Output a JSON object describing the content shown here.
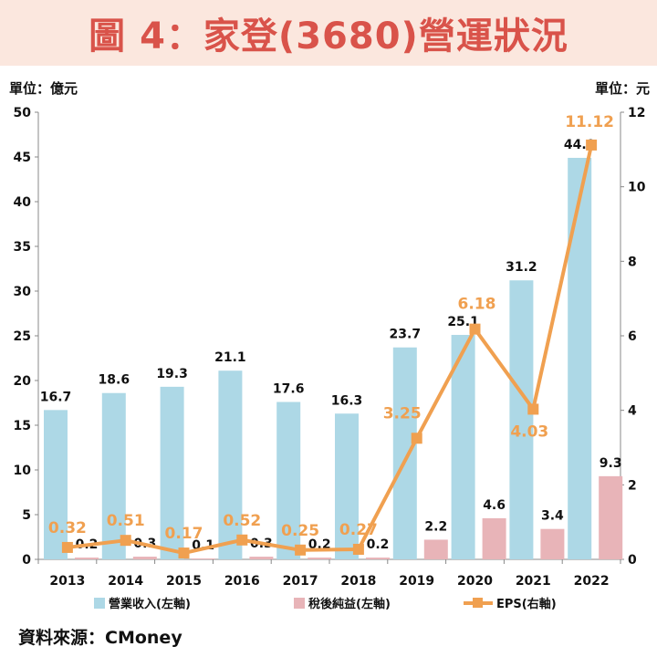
{
  "header": {
    "title": "圖 4：家登(3680)營運狀況"
  },
  "units": {
    "left": "單位：億元",
    "right": "單位：元"
  },
  "source": "資料來源：CMoney",
  "colors": {
    "revenue": "#add8e6",
    "net_income": "#e8b4b8",
    "eps": "#f0a050",
    "eps_label": "#f0a050"
  },
  "chart_data": {
    "type": "bar",
    "categories": [
      "2013",
      "2014",
      "2015",
      "2016",
      "2017",
      "2018",
      "2019",
      "2020",
      "2021",
      "2022"
    ],
    "series": [
      {
        "name": "營業收入(左軸)",
        "axis": "left",
        "type": "bar",
        "values": [
          16.7,
          18.6,
          19.3,
          21.1,
          17.6,
          16.3,
          23.7,
          25.1,
          31.2,
          44.9
        ],
        "labels": [
          "16.7",
          "18.6",
          "19.3",
          "21.1",
          "17.6",
          "16.3",
          "23.7",
          "25.1",
          "31.2",
          "44.9"
        ]
      },
      {
        "name": "稅後純益(左軸)",
        "axis": "left",
        "type": "bar",
        "values": [
          0.2,
          0.3,
          0.1,
          0.3,
          0.2,
          0.2,
          2.2,
          4.6,
          3.4,
          9.3
        ],
        "labels": [
          "0.2",
          "0.3",
          "0.1",
          "0.3",
          "0.2",
          "0.2",
          "2.2",
          "4.6",
          "3.4",
          "9.3"
        ]
      },
      {
        "name": "EPS(右軸)",
        "axis": "right",
        "type": "line",
        "values": [
          0.32,
          0.51,
          0.17,
          0.52,
          0.25,
          0.27,
          3.25,
          6.18,
          4.03,
          11.12
        ],
        "labels": [
          "0.32",
          "0.51",
          "0.17",
          "0.52",
          "0.25",
          "0.27",
          "3.25",
          "6.18",
          "4.03",
          "11.12"
        ]
      }
    ],
    "y_left": {
      "min": 0,
      "max": 50,
      "ticks": [
        "0",
        "5",
        "10",
        "15",
        "20",
        "25",
        "30",
        "35",
        "40",
        "45",
        "50"
      ]
    },
    "y_right": {
      "min": 0,
      "max": 12,
      "ticks": [
        "0",
        "2",
        "4",
        "6",
        "8",
        "10",
        "12"
      ]
    },
    "legend_position": "bottom",
    "grid": false
  }
}
